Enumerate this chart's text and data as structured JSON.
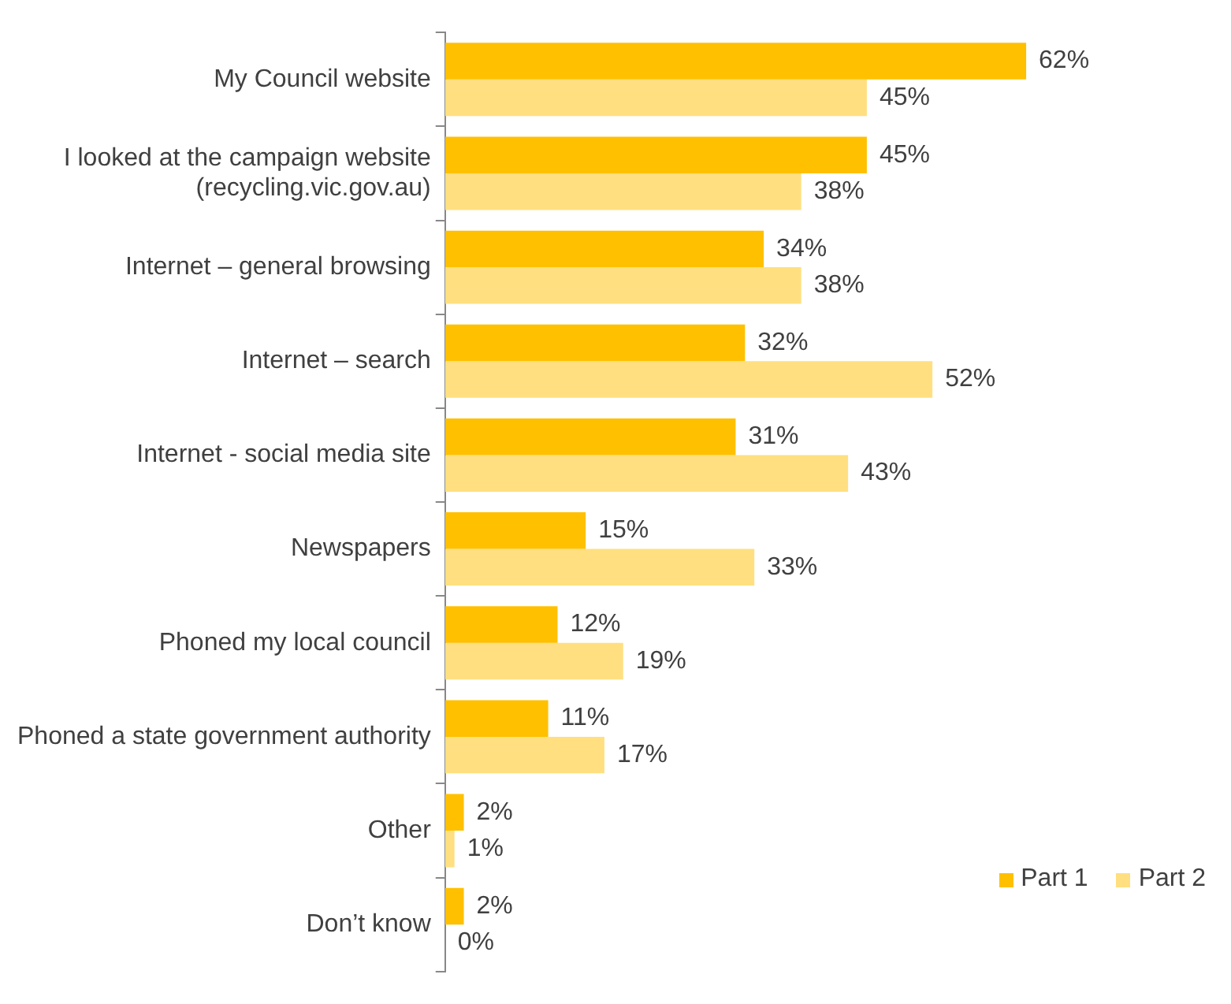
{
  "chart_data": {
    "type": "bar",
    "orientation": "horizontal",
    "categories": [
      "My Council website",
      "I looked at the campaign website\n(recycling.vic.gov.au)",
      "Internet – general browsing",
      "Internet – search",
      "Internet - social media site",
      "Newspapers",
      "Phoned my local council",
      "Phoned a state government authority",
      "Other",
      "Don’t know"
    ],
    "series": [
      {
        "name": "Part 1",
        "color": "#ffc000",
        "values": [
          62,
          45,
          34,
          32,
          31,
          15,
          12,
          11,
          2,
          2
        ],
        "value_labels": [
          "62%",
          "45%",
          "34%",
          "32%",
          "31%",
          "15%",
          "12%",
          "11%",
          "2%",
          "2%"
        ]
      },
      {
        "name": "Part 2",
        "color": "#ffdf80",
        "values": [
          45,
          38,
          38,
          52,
          43,
          33,
          19,
          17,
          1,
          0
        ],
        "value_labels": [
          "45%",
          "38%",
          "38%",
          "52%",
          "43%",
          "33%",
          "19%",
          "17%",
          "1%",
          "0%"
        ]
      }
    ],
    "legend": "bottom right"
  }
}
